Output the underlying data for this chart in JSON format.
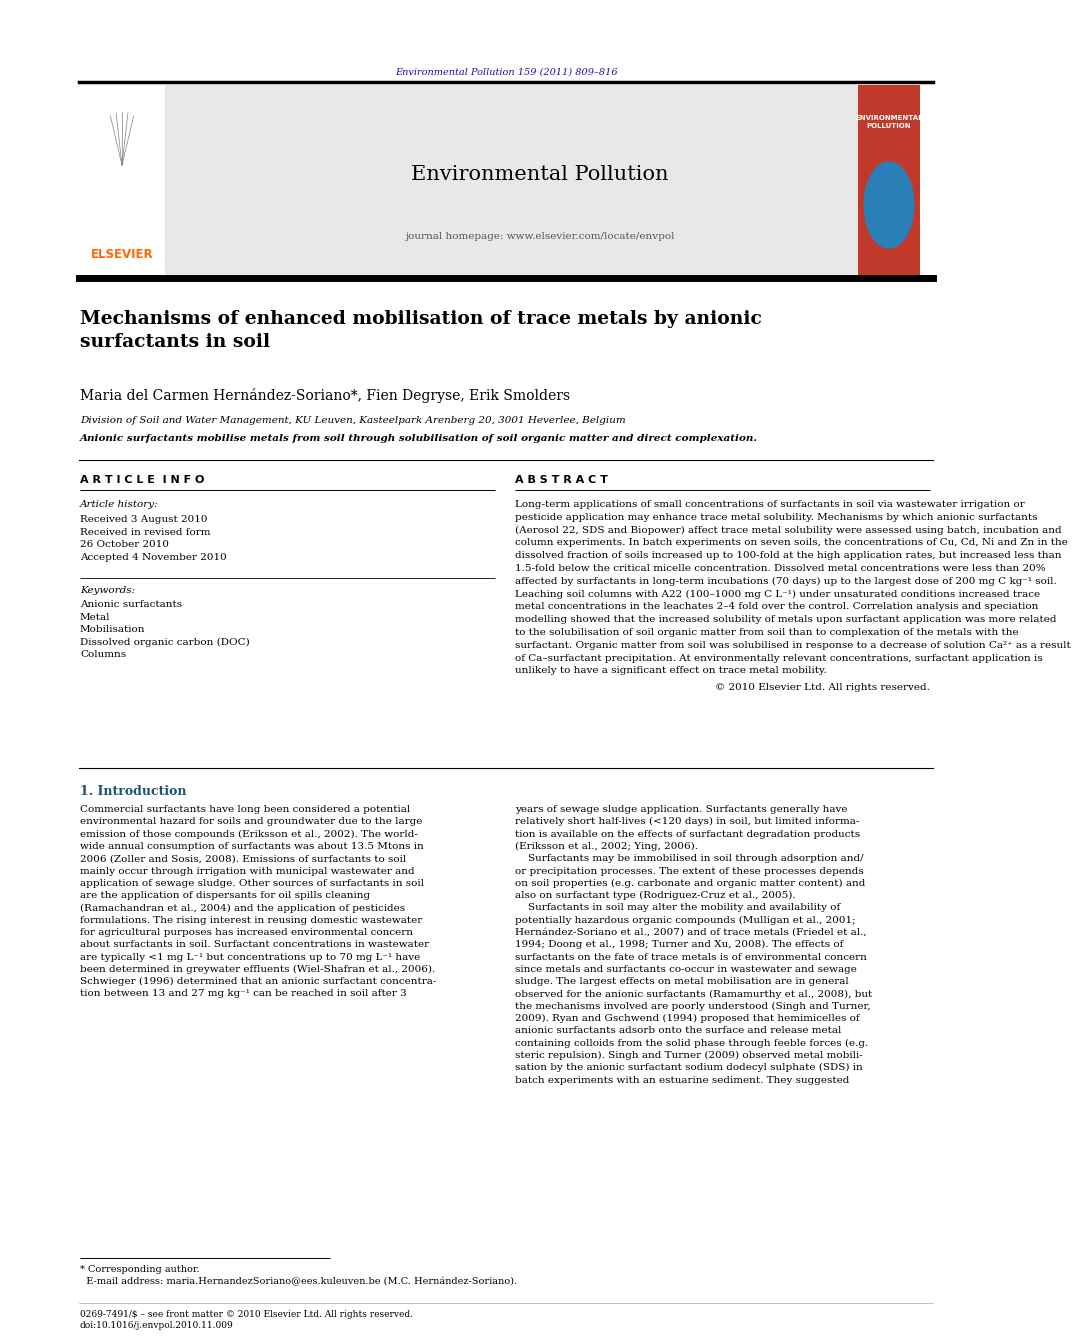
{
  "page_width": 9.92,
  "page_height": 13.23,
  "background_color": "#ffffff",
  "header_journal_ref": "Environmental Pollution 159 (2011) 809–816",
  "header_journal_ref_color": "#1a0dab",
  "journal_header_bg": "#e8e8e8",
  "journal_name": "Environmental Pollution",
  "journal_homepage": "journal homepage: www.elsevier.com/locate/envpol",
  "elsevier_color": "#ff6600",
  "cover_bg": "#c0392b",
  "cover_text": "ENVIRONMENTAL\nPOLLUTION",
  "article_title": "Mechanisms of enhanced mobilisation of trace metals by anionic\nsurfactants in soil",
  "authors": "Maria del Carmen Hernández-Soriano*, Fien Degryse, Erik Smolders",
  "affiliation": "Division of Soil and Water Management, KU Leuven, Kasteelpark Arenberg 20, 3001 Heverlee, Belgium",
  "highlight": "Anionic surfactants mobilise metals from soil through solubilisation of soil organic matter and direct complexation.",
  "article_info_header": "A R T I C L E  I N F O",
  "abstract_header": "A B S T R A C T",
  "article_history_label": "Article history:",
  "received": "Received 3 August 2010",
  "received_revised1": "Received in revised form",
  "received_revised2": "26 October 2010",
  "accepted": "Accepted 4 November 2010",
  "keywords_label": "Keywords:",
  "keywords": [
    "Anionic surfactants",
    "Metal",
    "Mobilisation",
    "Dissolved organic carbon (DOC)",
    "Columns"
  ],
  "copyright_text": "© 2010 Elsevier Ltd. All rights reserved.",
  "intro_header": "1. Introduction",
  "abstract_lines": [
    "Long-term applications of small concentrations of surfactants in soil via wastewater irrigation or",
    "pesticide application may enhance trace metal solubility. Mechanisms by which anionic surfactants",
    "(Aerosol 22, SDS and Biopower) affect trace metal solubility were assessed using batch, incubation and",
    "column experiments. In batch experiments on seven soils, the concentrations of Cu, Cd, Ni and Zn in the",
    "dissolved fraction of soils increased up to 100-fold at the high application rates, but increased less than",
    "1.5-fold below the critical micelle concentration. Dissolved metal concentrations were less than 20%",
    "affected by surfactants in long-term incubations (70 days) up to the largest dose of 200 mg C kg⁻¹ soil.",
    "Leaching soil columns with A22 (100–1000 mg C L⁻¹) under unsaturated conditions increased trace",
    "metal concentrations in the leachates 2–4 fold over the control. Correlation analysis and speciation",
    "modelling showed that the increased solubility of metals upon surfactant application was more related",
    "to the solubilisation of soil organic matter from soil than to complexation of the metals with the",
    "surfactant. Organic matter from soil was solubilised in response to a decrease of solution Ca²⁺ as a result",
    "of Ca–surfactant precipitation. At environmentally relevant concentrations, surfactant application is",
    "unlikely to have a significant effect on trace metal mobility."
  ],
  "intro1_lines": [
    "Commercial surfactants have long been considered a potential",
    "environmental hazard for soils and groundwater due to the large",
    "emission of those compounds (Eriksson et al., 2002). The world-",
    "wide annual consumption of surfactants was about 13.5 Mtons in",
    "2006 (Zoller and Sosis, 2008). Emissions of surfactants to soil",
    "mainly occur through irrigation with municipal wastewater and",
    "application of sewage sludge. Other sources of surfactants in soil",
    "are the application of dispersants for oil spills cleaning",
    "(Ramachandran et al., 2004) and the application of pesticides",
    "formulations. The rising interest in reusing domestic wastewater",
    "for agricultural purposes has increased environmental concern",
    "about surfactants in soil. Surfactant concentrations in wastewater",
    "are typically <1 mg L⁻¹ but concentrations up to 70 mg L⁻¹ have",
    "been determined in greywater effluents (Wiel-Shafran et al., 2006).",
    "Schwieger (1996) determined that an anionic surfactant concentra-",
    "tion between 13 and 27 mg kg⁻¹ can be reached in soil after 3"
  ],
  "intro2_lines": [
    "years of sewage sludge application. Surfactants generally have",
    "relatively short half-lives (<120 days) in soil, but limited informa-",
    "tion is available on the effects of surfactant degradation products",
    "(Eriksson et al., 2002; Ying, 2006).",
    "    Surfactants may be immobilised in soil through adsorption and/",
    "or precipitation processes. The extent of these processes depends",
    "on soil properties (e.g. carbonate and organic matter content) and",
    "also on surfactant type (Rodriguez-Cruz et al., 2005).",
    "    Surfactants in soil may alter the mobility and availability of",
    "potentially hazardous organic compounds (Mulligan et al., 2001;",
    "Hernández-Soriano et al., 2007) and of trace metals (Friedel et al.,",
    "1994; Doong et al., 1998; Turner and Xu, 2008). The effects of",
    "surfactants on the fate of trace metals is of environmental concern",
    "since metals and surfactants co-occur in wastewater and sewage",
    "sludge. The largest effects on metal mobilisation are in general",
    "observed for the anionic surfactants (Ramamurthy et al., 2008), but",
    "the mechanisms involved are poorly understood (Singh and Turner,",
    "2009). Ryan and Gschwend (1994) proposed that hemimicelles of",
    "anionic surfactants adsorb onto the surface and release metal",
    "containing colloids from the solid phase through feeble forces (e.g.",
    "steric repulsion). Singh and Turner (2009) observed metal mobili-",
    "sation by the anionic surfactant sodium dodecyl sulphate (SDS) in",
    "batch experiments with an estuarine sediment. They suggested"
  ],
  "footnote1": "* Corresponding author.",
  "footnote2": "  E-mail address: maria.HernandezSoriano@ees.kuleuven.be (M.C. Hernández-Soriano).",
  "bottom1": "0269-7491/$ – see front matter © 2010 Elsevier Ltd. All rights reserved.",
  "bottom2": "doi:10.1016/j.envpol.2010.11.009"
}
